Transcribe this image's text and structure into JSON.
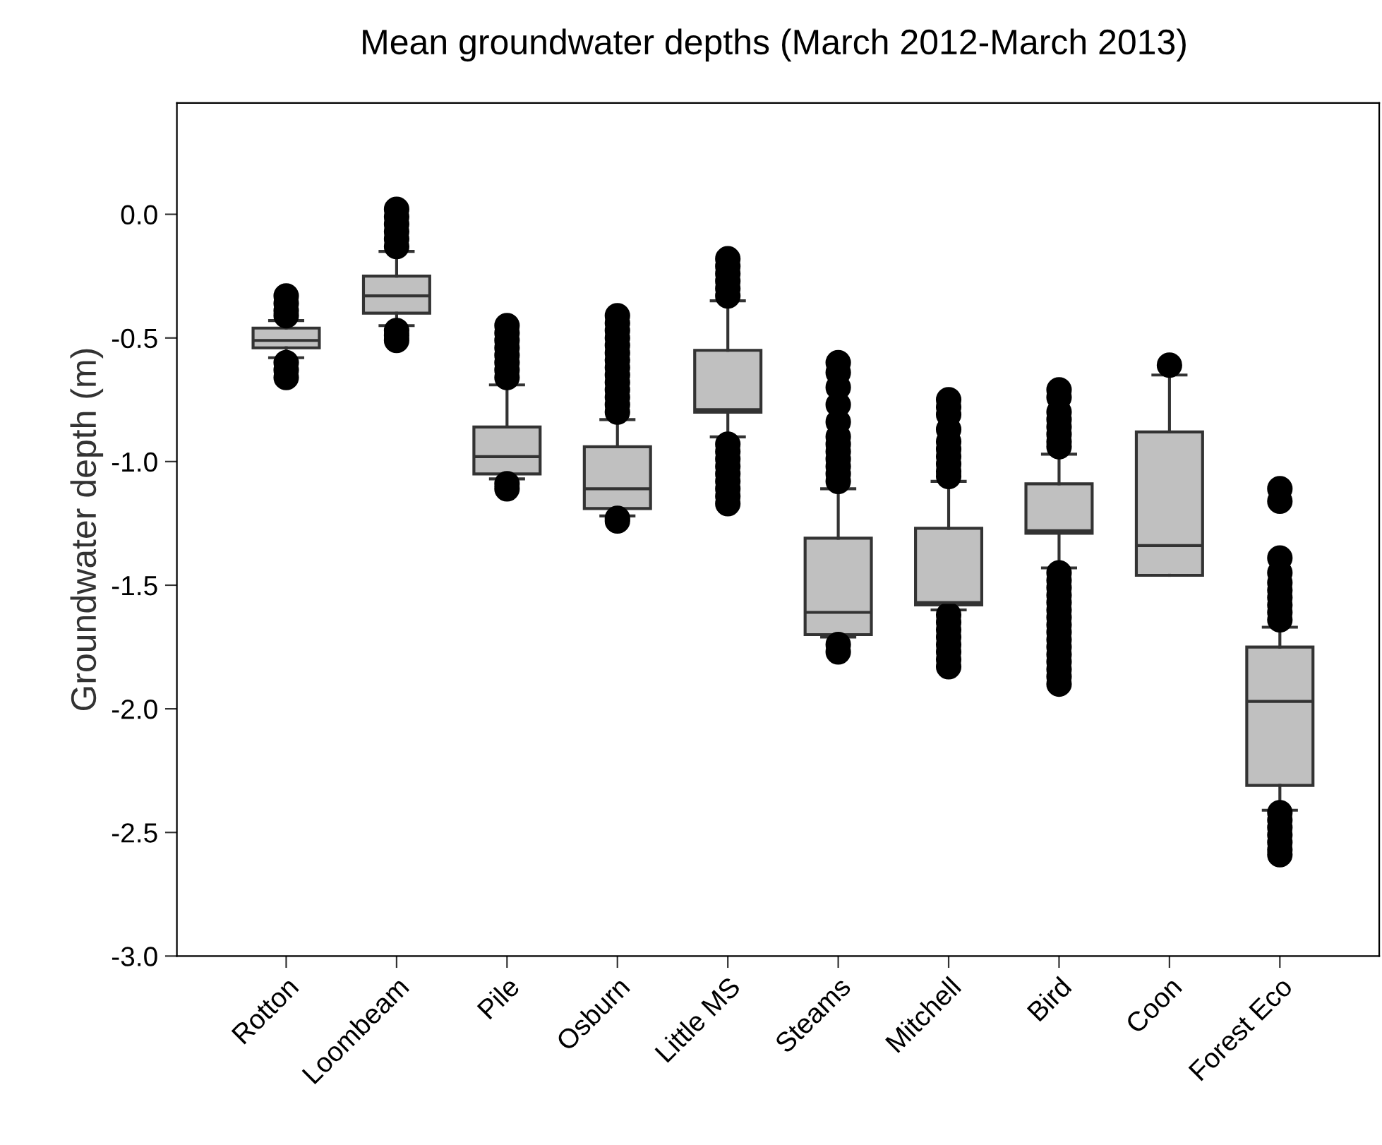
{
  "chart_data": {
    "type": "box",
    "title": "Mean groundwater depths (March 2012-March 2013)",
    "ylabel": "Groundwater depth (m)",
    "categories": [
      "Rotton",
      "Loombeam",
      "Pile",
      "Osburn",
      "Little MS",
      "Steams",
      "Mitchell",
      "Bird",
      "Coon",
      "Forest Eco"
    ],
    "ylim": [
      -3.0,
      0.45
    ],
    "yticks": [
      {
        "value": 0.0,
        "label": "0.0"
      },
      -0.5,
      {
        "value": -1.0,
        "label": "-1.0"
      },
      -1.5,
      {
        "value": -2.0,
        "label": "-2.0"
      },
      -2.5,
      {
        "value": -3.0,
        "label": "-3.0"
      }
    ],
    "grid": false,
    "color": "#c0c0c0",
    "boxes": [
      {
        "low": -0.58,
        "q1": -0.54,
        "median": -0.51,
        "q3": -0.46,
        "high": -0.43,
        "outliers": [
          -0.33,
          -0.36,
          -0.39,
          -0.41,
          -0.6,
          -0.63,
          -0.66
        ]
      },
      {
        "low": -0.45,
        "q1": -0.4,
        "median": -0.33,
        "q3": -0.25,
        "high": -0.15,
        "outliers": [
          0.02,
          -0.01,
          -0.04,
          -0.07,
          -0.1,
          -0.13,
          -0.47,
          -0.49,
          -0.51
        ]
      },
      {
        "low": -1.07,
        "q1": -1.05,
        "median": -0.98,
        "q3": -0.86,
        "high": -0.69,
        "outliers": [
          -0.45,
          -0.48,
          -0.51,
          -0.54,
          -0.57,
          -0.6,
          -0.63,
          -0.66,
          -1.09,
          -1.11
        ]
      },
      {
        "low": -1.22,
        "q1": -1.19,
        "median": -1.11,
        "q3": -0.94,
        "high": -0.83,
        "outliers": [
          -0.41,
          -0.44,
          -0.47,
          -0.5,
          -0.53,
          -0.56,
          -0.59,
          -0.62,
          -0.65,
          -0.68,
          -0.71,
          -0.74,
          -0.77,
          -0.8,
          -1.23,
          -1.24
        ]
      },
      {
        "low": -0.9,
        "q1": -0.8,
        "median": -0.79,
        "q3": -0.55,
        "high": -0.35,
        "outliers": [
          -0.18,
          -0.21,
          -0.24,
          -0.27,
          -0.3,
          -0.33,
          -0.93,
          -0.96,
          -0.99,
          -1.02,
          -1.05,
          -1.08,
          -1.11,
          -1.14,
          -1.17
        ]
      },
      {
        "low": -1.71,
        "q1": -1.7,
        "median": -1.61,
        "q3": -1.31,
        "high": -1.11,
        "outliers": [
          -0.6,
          -0.64,
          -0.7,
          -0.77,
          -0.84,
          -0.9,
          -0.93,
          -0.96,
          -0.99,
          -1.02,
          -1.05,
          -1.08,
          -1.74,
          -1.77
        ]
      },
      {
        "low": -1.6,
        "q1": -1.58,
        "median": -1.57,
        "q3": -1.27,
        "high": -1.08,
        "outliers": [
          -0.75,
          -0.78,
          -0.81,
          -0.87,
          -0.92,
          -0.95,
          -0.98,
          -1.01,
          -1.04,
          -1.06,
          -1.62,
          -1.65,
          -1.68,
          -1.71,
          -1.74,
          -1.77,
          -1.8,
          -1.83
        ]
      },
      {
        "low": -1.43,
        "q1": -1.29,
        "median": -1.28,
        "q3": -1.09,
        "high": -0.97,
        "outliers": [
          -0.71,
          -0.74,
          -0.8,
          -0.83,
          -0.86,
          -0.89,
          -0.92,
          -0.94,
          -1.45,
          -1.48,
          -1.51,
          -1.54,
          -1.57,
          -1.6,
          -1.63,
          -1.66,
          -1.69,
          -1.72,
          -1.75,
          -1.78,
          -1.81,
          -1.84,
          -1.87,
          -1.9
        ]
      },
      {
        "low": -1.46,
        "q1": -1.46,
        "median": -1.34,
        "q3": -0.88,
        "high": -0.65,
        "outliers": [
          -0.61
        ]
      },
      {
        "low": -2.41,
        "q1": -2.31,
        "median": -1.97,
        "q3": -1.75,
        "high": -1.67,
        "outliers": [
          -1.11,
          -1.16,
          -1.39,
          -1.45,
          -1.49,
          -1.52,
          -1.55,
          -1.58,
          -1.61,
          -1.64,
          -2.42,
          -2.45,
          -2.48,
          -2.51,
          -2.54,
          -2.57,
          -2.59
        ]
      }
    ]
  }
}
